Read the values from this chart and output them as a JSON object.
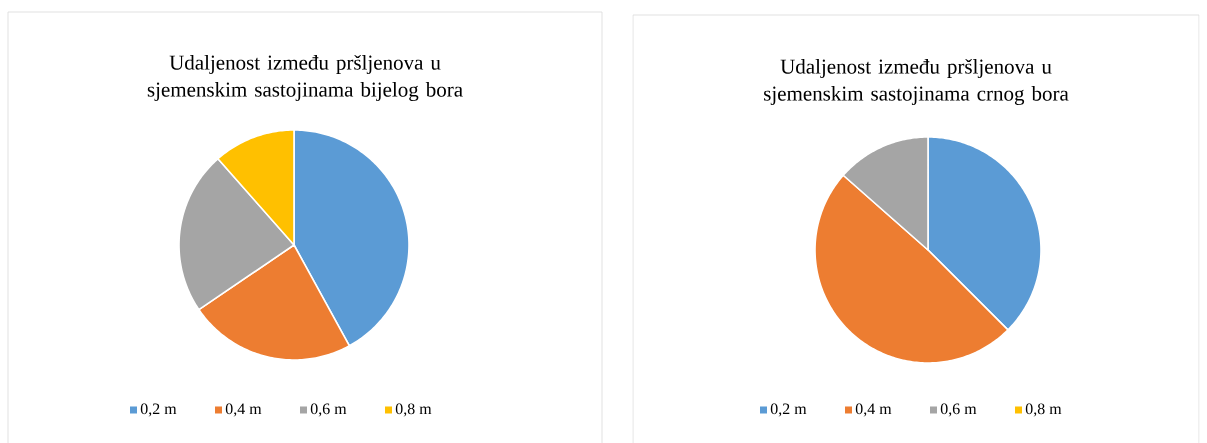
{
  "chart_data": [
    {
      "type": "pie",
      "title": "Udaljenost između pršljenova u sjemenskim sastojinama bijelog bora",
      "categories": [
        "0,2 m",
        "0,4 m",
        "0,6 m",
        "0,8 m"
      ],
      "values": [
        42,
        23.5,
        23,
        11.5
      ],
      "colors": [
        "#5b9bd5",
        "#ed7d31",
        "#a5a5a5",
        "#ffc000"
      ],
      "legend": "bottom"
    },
    {
      "type": "pie",
      "title": "Udaljenost između pršljenova u sjemenskim sastojinama crnog bora",
      "categories": [
        "0,2 m",
        "0,4 m",
        "0,6 m",
        "0,8 m"
      ],
      "values": [
        37.5,
        49,
        13.5,
        0
      ],
      "colors": [
        "#5b9bd5",
        "#ed7d31",
        "#a5a5a5",
        "#ffc000"
      ],
      "legend": "bottom"
    }
  ]
}
